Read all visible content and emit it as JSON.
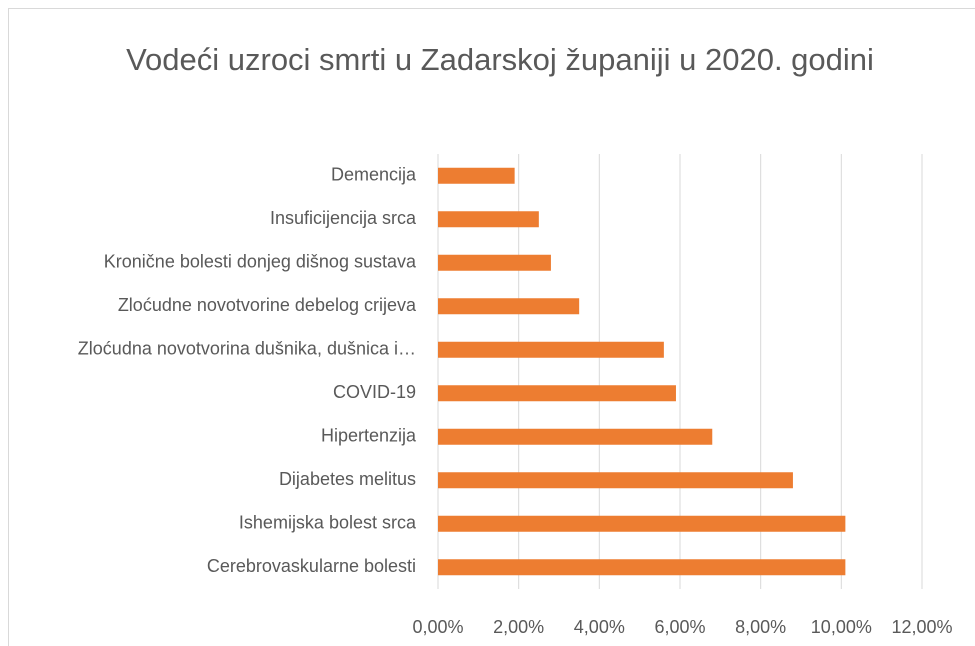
{
  "chart_data": {
    "type": "bar",
    "orientation": "horizontal",
    "title": "Vodeći uzroci smrti u Zadarskoj županiji u 2020. godini",
    "categories": [
      "Demencija",
      "Insuficijencija srca",
      "Kronične bolesti donjeg dišnog sustava",
      "Zloćudne novotvorine debelog crijeva",
      "Zloćudna novotvorina dušnika, dušnica i…",
      "COVID-19",
      "Hipertenzija",
      "Dijabetes melitus",
      "Ishemijska bolest srca",
      "Cerebrovaskularne bolesti"
    ],
    "values": [
      1.9,
      2.5,
      2.8,
      3.5,
      5.6,
      5.9,
      6.8,
      8.8,
      10.1,
      10.1
    ],
    "color": "#ed7d31",
    "xlim": [
      0,
      12
    ],
    "xticks": [
      {
        "value": 0,
        "label": "0,00%"
      },
      {
        "value": 2,
        "label": "2,00%"
      },
      {
        "value": 4,
        "label": "4,00%"
      },
      {
        "value": 6,
        "label": "6,00%"
      },
      {
        "value": 8,
        "label": "8,00%"
      },
      {
        "value": 10,
        "label": "10,00%"
      },
      {
        "value": 12,
        "label": "12,00%"
      }
    ],
    "grid": true
  }
}
